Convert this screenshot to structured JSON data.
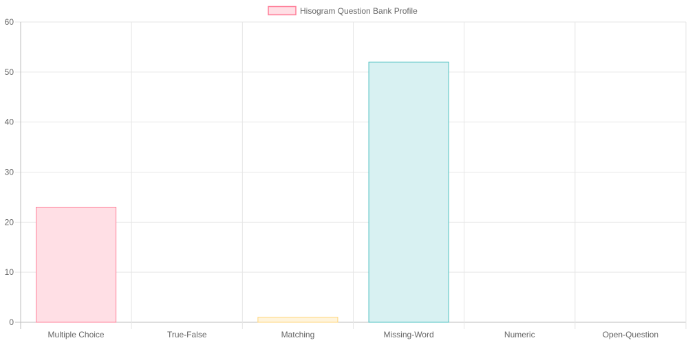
{
  "chart_data": {
    "type": "bar",
    "categories": [
      "Multiple Choice",
      "True-False",
      "Matching",
      "Missing-Word",
      "Numeric",
      "Open-Question"
    ],
    "series": [
      {
        "name": "Hisogram Question Bank Profile",
        "values": [
          23,
          0,
          1,
          52,
          0,
          0
        ]
      }
    ],
    "ylim": [
      0,
      60
    ],
    "yticks": [
      0,
      10,
      20,
      30,
      40,
      50,
      60
    ],
    "legend_position": "top",
    "grid": true,
    "bar_fills": [
      "#ffdfe5",
      "#dcecfb",
      "#fff4dc",
      "#d8f1f2",
      "#ebe0ff",
      "#fff0e0"
    ],
    "bar_strokes": [
      "#ff7f99",
      "#5ab0ee",
      "#ffd57a",
      "#4bc0c0",
      "#9966ff",
      "#ff9f40"
    ],
    "legend_fill": "#ffdfe5",
    "legend_stroke": "#ff7f99",
    "grid_color": "#e6e6e6",
    "axis_color": "#bdbdbd",
    "text_color": "#666666"
  }
}
